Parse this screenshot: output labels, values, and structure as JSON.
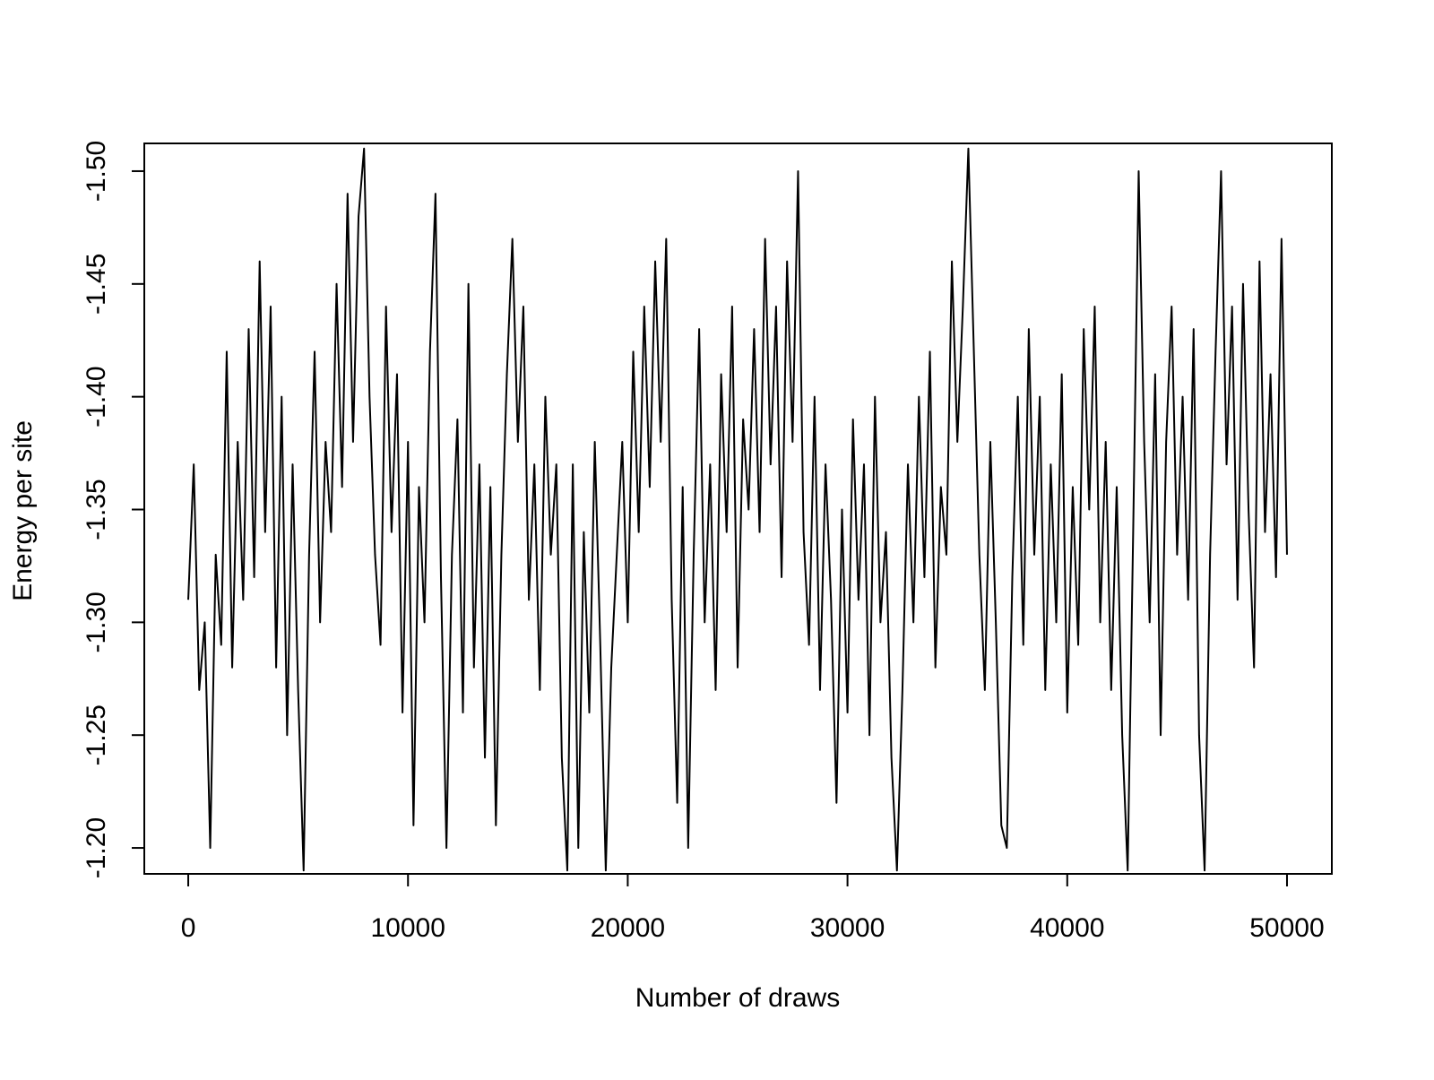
{
  "chart_data": {
    "type": "line",
    "xlabel": "Number of draws",
    "ylabel": "Energy per site",
    "color": "#000000",
    "xlim": [
      -2000,
      52040
    ],
    "ylim": [
      -1.1885,
      -1.5123
    ],
    "xticks": [
      0,
      10000,
      20000,
      30000,
      40000,
      50000
    ],
    "yticks": [
      {
        "value": -1.5,
        "label": "-1.50"
      },
      -1.45,
      {
        "value": -1.4,
        "label": "-1.40"
      },
      -1.35,
      {
        "value": -1.3,
        "label": "-1.30"
      },
      -1.25,
      {
        "value": -1.2,
        "label": "-1.20"
      }
    ],
    "x": [
      0,
      250,
      500,
      750,
      1000,
      1250,
      1500,
      1750,
      2000,
      2250,
      2500,
      2750,
      3000,
      3250,
      3500,
      3750,
      4000,
      4250,
      4500,
      4750,
      5000,
      5250,
      5500,
      5750,
      6000,
      6250,
      6500,
      6750,
      7000,
      7250,
      7500,
      7750,
      8000,
      8250,
      8500,
      8750,
      9000,
      9250,
      9500,
      9750,
      10000,
      10250,
      10500,
      10750,
      11000,
      11250,
      11500,
      11750,
      12000,
      12250,
      12500,
      12750,
      13000,
      13250,
      13500,
      13750,
      14000,
      14250,
      14500,
      14750,
      15000,
      15250,
      15500,
      15750,
      16000,
      16250,
      16500,
      16750,
      17000,
      17250,
      17500,
      17750,
      18000,
      18250,
      18500,
      18750,
      19000,
      19250,
      19500,
      19750,
      20000,
      20250,
      20500,
      20750,
      21000,
      21250,
      21500,
      21750,
      22000,
      22250,
      22500,
      22750,
      23000,
      23250,
      23500,
      23750,
      24000,
      24250,
      24500,
      24750,
      25000,
      25250,
      25500,
      25750,
      26000,
      26250,
      26500,
      26750,
      27000,
      27250,
      27500,
      27750,
      28000,
      28250,
      28500,
      28750,
      29000,
      29250,
      29500,
      29750,
      30000,
      30250,
      30500,
      30750,
      31000,
      31250,
      31500,
      31750,
      32000,
      32250,
      32500,
      32750,
      33000,
      33250,
      33500,
      33750,
      34000,
      34250,
      34500,
      34750,
      35000,
      35250,
      35500,
      35750,
      36000,
      36250,
      36500,
      36750,
      37000,
      37250,
      37500,
      37750,
      38000,
      38250,
      38500,
      38750,
      39000,
      39250,
      39500,
      39750,
      40000,
      40250,
      40500,
      40750,
      41000,
      41250,
      41500,
      41750,
      42000,
      42250,
      42500,
      42750,
      43000,
      43250,
      43500,
      43750,
      44000,
      44250,
      44500,
      44750,
      45000,
      45250,
      45500,
      45750,
      46000,
      46250,
      46500,
      46750,
      47000,
      47250,
      47500,
      47750,
      48000,
      48250,
      48500,
      48750,
      49000,
      49250,
      49500,
      49750,
      50000
    ],
    "values": [
      -1.31,
      -1.37,
      -1.27,
      -1.3,
      -1.2,
      -1.33,
      -1.29,
      -1.42,
      -1.28,
      -1.38,
      -1.31,
      -1.43,
      -1.32,
      -1.46,
      -1.34,
      -1.44,
      -1.28,
      -1.4,
      -1.25,
      -1.37,
      -1.27,
      -1.19,
      -1.33,
      -1.42,
      -1.3,
      -1.38,
      -1.34,
      -1.45,
      -1.36,
      -1.49,
      -1.38,
      -1.48,
      -1.51,
      -1.4,
      -1.33,
      -1.29,
      -1.44,
      -1.34,
      -1.41,
      -1.26,
      -1.38,
      -1.21,
      -1.36,
      -1.3,
      -1.42,
      -1.49,
      -1.32,
      -1.2,
      -1.33,
      -1.39,
      -1.26,
      -1.45,
      -1.28,
      -1.37,
      -1.24,
      -1.36,
      -1.21,
      -1.33,
      -1.41,
      -1.47,
      -1.38,
      -1.44,
      -1.31,
      -1.37,
      -1.27,
      -1.4,
      -1.33,
      -1.37,
      -1.24,
      -1.19,
      -1.37,
      -1.2,
      -1.34,
      -1.26,
      -1.38,
      -1.29,
      -1.19,
      -1.28,
      -1.33,
      -1.38,
      -1.3,
      -1.42,
      -1.34,
      -1.44,
      -1.36,
      -1.46,
      -1.38,
      -1.47,
      -1.31,
      -1.22,
      -1.36,
      -1.2,
      -1.33,
      -1.43,
      -1.3,
      -1.37,
      -1.27,
      -1.41,
      -1.34,
      -1.44,
      -1.28,
      -1.39,
      -1.35,
      -1.43,
      -1.34,
      -1.47,
      -1.37,
      -1.44,
      -1.32,
      -1.46,
      -1.38,
      -1.5,
      -1.34,
      -1.29,
      -1.4,
      -1.27,
      -1.37,
      -1.31,
      -1.22,
      -1.35,
      -1.26,
      -1.39,
      -1.31,
      -1.37,
      -1.25,
      -1.4,
      -1.3,
      -1.34,
      -1.24,
      -1.19,
      -1.27,
      -1.37,
      -1.3,
      -1.4,
      -1.32,
      -1.42,
      -1.28,
      -1.36,
      -1.33,
      -1.46,
      -1.38,
      -1.44,
      -1.51,
      -1.42,
      -1.33,
      -1.27,
      -1.38,
      -1.3,
      -1.21,
      -1.2,
      -1.32,
      -1.4,
      -1.29,
      -1.43,
      -1.33,
      -1.4,
      -1.27,
      -1.37,
      -1.3,
      -1.41,
      -1.26,
      -1.36,
      -1.29,
      -1.43,
      -1.35,
      -1.44,
      -1.3,
      -1.38,
      -1.27,
      -1.36,
      -1.25,
      -1.19,
      -1.34,
      -1.5,
      -1.38,
      -1.3,
      -1.41,
      -1.25,
      -1.38,
      -1.44,
      -1.33,
      -1.4,
      -1.31,
      -1.43,
      -1.25,
      -1.19,
      -1.33,
      -1.42,
      -1.5,
      -1.37,
      -1.44,
      -1.31,
      -1.45,
      -1.35,
      -1.28,
      -1.46,
      -1.34,
      -1.41,
      -1.32,
      -1.47,
      -1.33
    ]
  }
}
